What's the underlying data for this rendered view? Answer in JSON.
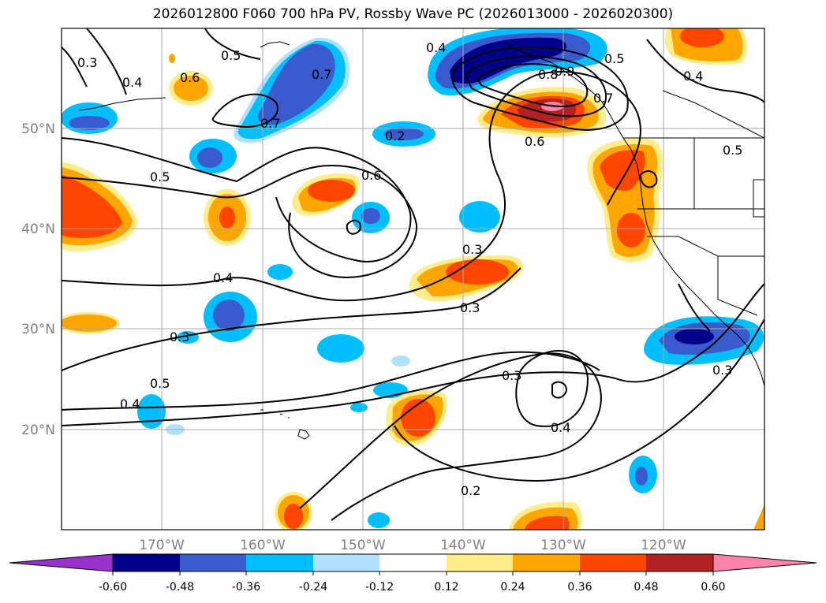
{
  "title": "2026012800 F060 700 hPa PV, Rossby Wave PC (2026013000 - 2026020300)",
  "lat_labels": [
    "50°N",
    "40°N",
    "30°N",
    "20°N"
  ],
  "lon_labels": [
    "170°W",
    "160°W",
    "150°W",
    "140°W",
    "130°W",
    "120°W"
  ],
  "contour_labels": [
    "0.3",
    "0.4",
    "0.5",
    "0.6",
    "0.7",
    "0.7",
    "0.5",
    "0.6",
    "0.5",
    "0.4",
    "0.6",
    "0.2",
    "0.4",
    "0.3",
    "0.5",
    "0.8",
    "0.9",
    "0.7",
    "0.6",
    "0.5",
    "0.4",
    "0.5",
    "0.3",
    "0.3",
    "0.3",
    "0.4",
    "0.2",
    "0.3",
    "0.5",
    "0.4"
  ],
  "colorbar": {
    "ticks": [
      "-0.60",
      "-0.48",
      "-0.36",
      "-0.24",
      "-0.12",
      "0.12",
      "0.24",
      "0.36",
      "0.48",
      "0.60"
    ],
    "colors": [
      "#9932cc",
      "#00008b",
      "#3a5bcd",
      "#00bfff",
      "#b0e2ff",
      "#ffffff",
      "#ffec8b",
      "#ffa500",
      "#ff4500",
      "#b22222",
      "#ff82ab"
    ]
  }
}
